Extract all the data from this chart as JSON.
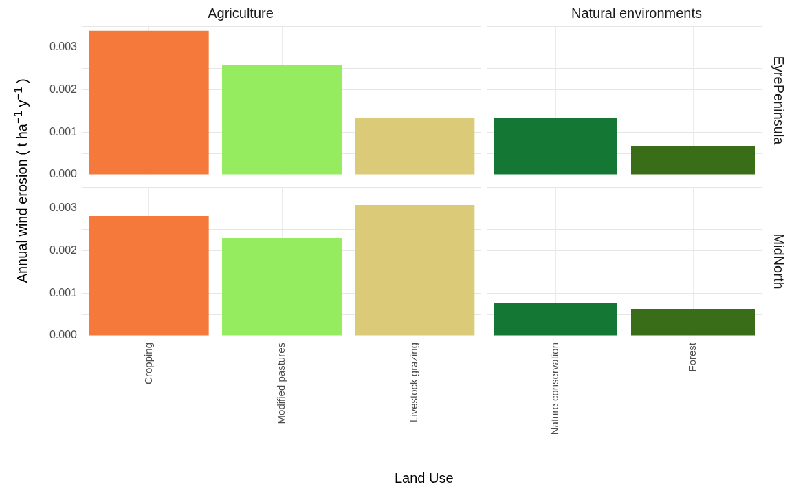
{
  "chart_data": [
    {
      "type": "bar",
      "title": "Agriculture",
      "ylabel": "Annual wind erosion ( t ha$^{−1}$ y$^{−1}$ )",
      "categories": [
        null,
        null,
        null
      ],
      "values": [
        0.00339,
        0.00259,
        0.00133
      ],
      "colors": [
        "#f5793a",
        "#95ec5f",
        "#dbca78"
      ],
      "ylim": [
        0,
        0.0035
      ],
      "yticks": [
        {
          "value": 0,
          "label": "0.000"
        },
        {
          "value": 0.0005,
          "label": null
        },
        {
          "value": 0.001,
          "label": "0.001"
        },
        {
          "value": 0.0015,
          "label": null
        },
        {
          "value": 0.002,
          "label": "0.002"
        },
        {
          "value": 0.0025,
          "label": null
        },
        {
          "value": 0.003,
          "label": "0.003"
        },
        {
          "value": 0.0035,
          "label": null
        }
      ],
      "grid": true,
      "tick_labels": "y"
    },
    {
      "type": "bar",
      "title": "Natural environments",
      "y2label": "EyrePeninsula",
      "categories": [
        null,
        null
      ],
      "values": [
        0.00134,
        0.00067
      ],
      "colors": [
        "#147834",
        "#3a6d18"
      ],
      "ylim": [
        0,
        0.0035
      ],
      "yticks": [
        0,
        0.0005,
        0.001,
        0.0015,
        0.002,
        0.0025,
        0.003,
        0.0035
      ],
      "grid": true,
      "tick_labels": false
    },
    {
      "type": "bar",
      "xlabel": "Land Use",
      "categories": [
        "Cropping",
        "Modified pastures",
        "Livestock grazing"
      ],
      "values": [
        0.00282,
        0.0023,
        0.00308
      ],
      "colors": [
        "#f5793a",
        "#95ec5f",
        "#dbca78"
      ],
      "ylim": [
        0,
        0.0035
      ],
      "yticks": [
        {
          "value": 0,
          "label": "0.000"
        },
        {
          "value": 0.0005,
          "label": null
        },
        {
          "value": 0.001,
          "label": "0.001"
        },
        {
          "value": 0.0015,
          "label": null
        },
        {
          "value": 0.002,
          "label": "0.002"
        },
        {
          "value": 0.0025,
          "label": null
        },
        {
          "value": 0.003,
          "label": "0.003"
        },
        {
          "value": 0.0035,
          "label": null
        }
      ],
      "grid": true
    },
    {
      "type": "bar",
      "y2label": "MidNorth",
      "categories": [
        "Nature conservation",
        "Forest"
      ],
      "values": [
        0.00077,
        0.00062
      ],
      "colors": [
        "#147834",
        "#3a6d18"
      ],
      "ylim": [
        0,
        0.0035
      ],
      "yticks": [
        0,
        0.0005,
        0.001,
        0.0015,
        0.002,
        0.0025,
        0.003,
        0.0035
      ],
      "grid": true,
      "tick_labels": "x"
    }
  ]
}
